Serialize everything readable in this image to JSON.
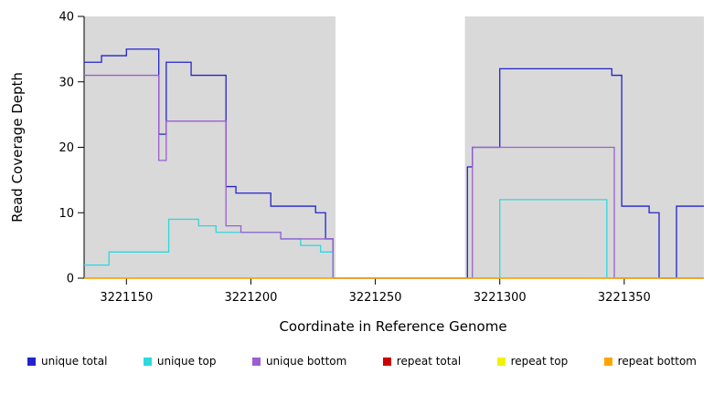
{
  "chart_data": {
    "type": "line",
    "subtype": "step",
    "title": "",
    "xlabel": "Coordinate in Reference Genome",
    "ylabel": "Read Coverage Depth",
    "xlim": [
      3221133,
      3221382
    ],
    "ylim": [
      0,
      40
    ],
    "xticks": [
      3221150,
      3221200,
      3221250,
      3221300,
      3221350
    ],
    "yticks": [
      0,
      10,
      20,
      30,
      40
    ],
    "grid": false,
    "legend_position": "bottom",
    "plot_background": "#D9D9D9",
    "gap_region": {
      "x_start": 3221234,
      "x_end": 3221286,
      "color": "#FFFFFF"
    },
    "series": [
      {
        "name": "unique total",
        "color": "#2323CC",
        "points": [
          [
            3221133,
            33
          ],
          [
            3221140,
            34
          ],
          [
            3221150,
            35
          ],
          [
            3221163,
            22
          ],
          [
            3221166,
            33
          ],
          [
            3221176,
            31
          ],
          [
            3221190,
            14
          ],
          [
            3221194,
            13
          ],
          [
            3221208,
            11
          ],
          [
            3221226,
            10
          ],
          [
            3221230,
            6
          ],
          [
            3221233,
            0
          ],
          [
            3221287,
            17
          ],
          [
            3221289,
            20
          ],
          [
            3221300,
            32
          ],
          [
            3221345,
            31
          ],
          [
            3221349,
            11
          ],
          [
            3221360,
            10
          ],
          [
            3221364,
            0
          ],
          [
            3221371,
            11
          ]
        ]
      },
      {
        "name": "unique top",
        "color": "#2ED8DE",
        "points": [
          [
            3221133,
            2
          ],
          [
            3221143,
            4
          ],
          [
            3221167,
            9
          ],
          [
            3221179,
            8
          ],
          [
            3221186,
            7
          ],
          [
            3221212,
            6
          ],
          [
            3221220,
            5
          ],
          [
            3221228,
            4
          ],
          [
            3221233,
            0
          ],
          [
            3221300,
            12
          ],
          [
            3221343,
            0
          ]
        ]
      },
      {
        "name": "unique bottom",
        "color": "#9A5FD0",
        "points": [
          [
            3221133,
            31
          ],
          [
            3221163,
            18
          ],
          [
            3221166,
            24
          ],
          [
            3221190,
            8
          ],
          [
            3221196,
            7
          ],
          [
            3221212,
            6
          ],
          [
            3221233,
            0
          ],
          [
            3221289,
            20
          ],
          [
            3221346,
            0
          ]
        ]
      },
      {
        "name": "repeat total",
        "color": "#CC0000",
        "points": [
          [
            3221133,
            0
          ]
        ]
      },
      {
        "name": "repeat top",
        "color": "#F2F200",
        "points": [
          [
            3221133,
            0
          ]
        ]
      },
      {
        "name": "repeat bottom",
        "color": "#FFA500",
        "points": [
          [
            3221133,
            0
          ]
        ]
      }
    ]
  }
}
